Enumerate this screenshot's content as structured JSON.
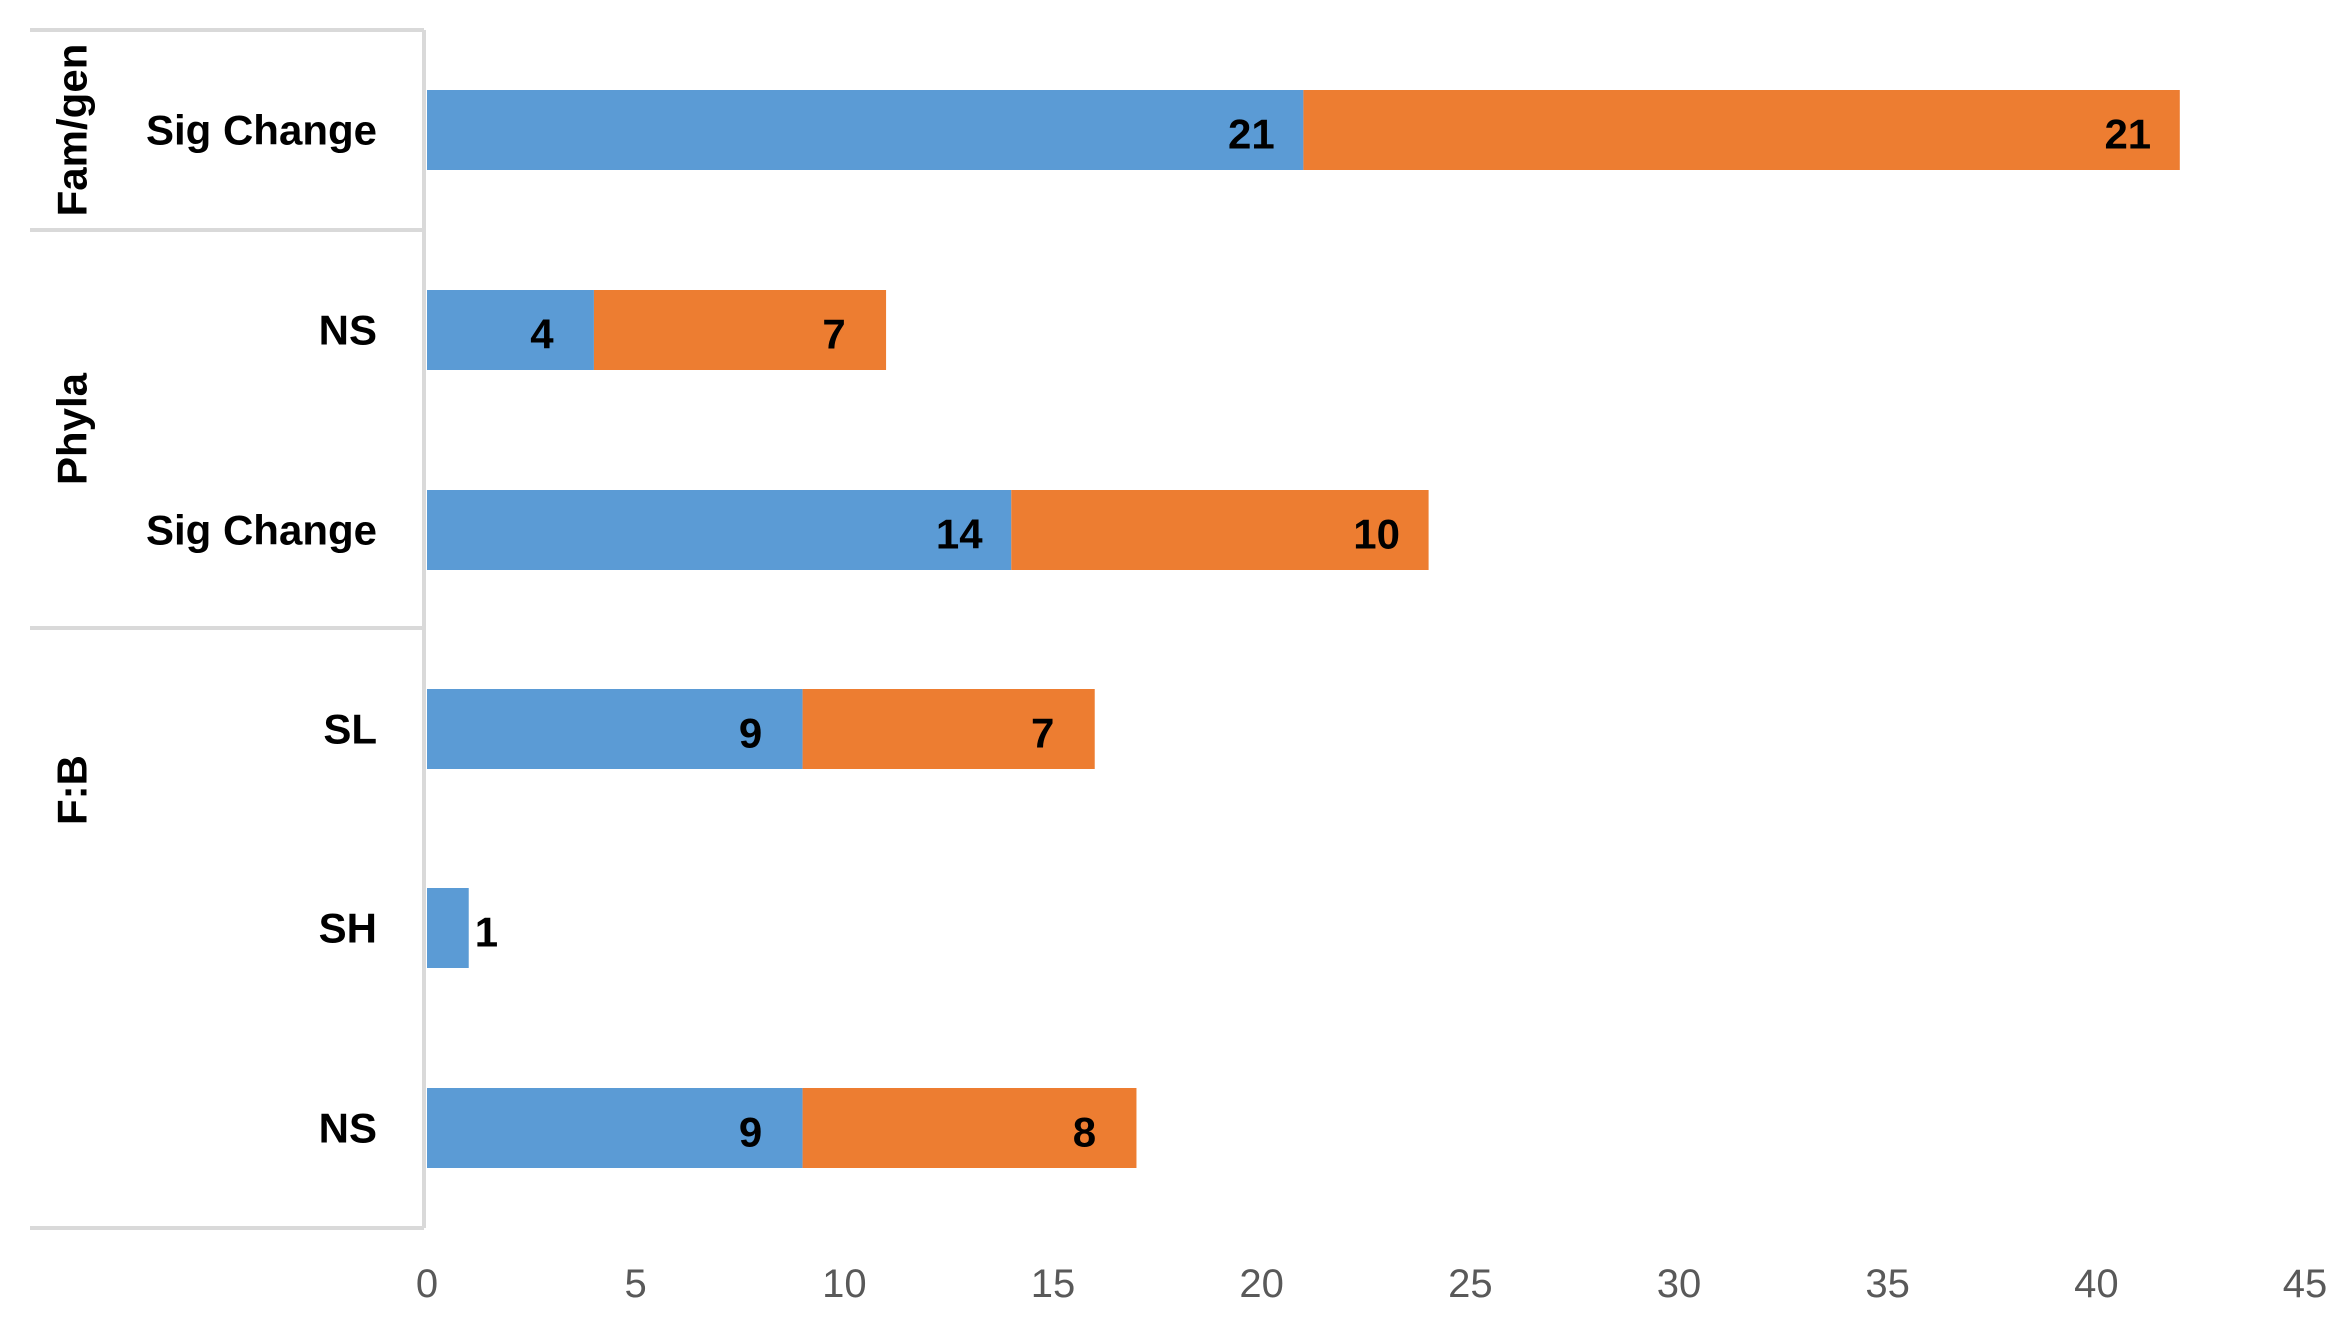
{
  "chart_data": {
    "type": "bar",
    "orientation": "horizontal",
    "stacked": true,
    "groups": [
      {
        "name": "Fam/gen",
        "categories": [
          "Sig Change"
        ]
      },
      {
        "name": "Phyla",
        "categories": [
          "NS",
          "Sig Change"
        ]
      },
      {
        "name": "F:B",
        "categories": [
          "SL",
          "SH",
          "NS"
        ]
      }
    ],
    "categories": [
      "Fam/gen | Sig Change",
      "Phyla | NS",
      "Phyla | Sig Change",
      "F:B | SL",
      "F:B | SH",
      "F:B | NS"
    ],
    "series": [
      {
        "color": "#5B9BD5",
        "values": [
          21,
          4,
          14,
          9,
          1,
          9
        ]
      },
      {
        "color": "#ED7D31",
        "values": [
          21,
          7,
          10,
          7,
          null,
          8
        ]
      }
    ],
    "xlim": [
      0,
      45
    ],
    "xticks": [
      "0",
      "5",
      "10",
      "15",
      "20",
      "25",
      "30",
      "35",
      "40",
      "45"
    ],
    "data_labels": true,
    "grid": false,
    "legend": "none",
    "title": "",
    "xlabel": "",
    "ylabel": ""
  }
}
